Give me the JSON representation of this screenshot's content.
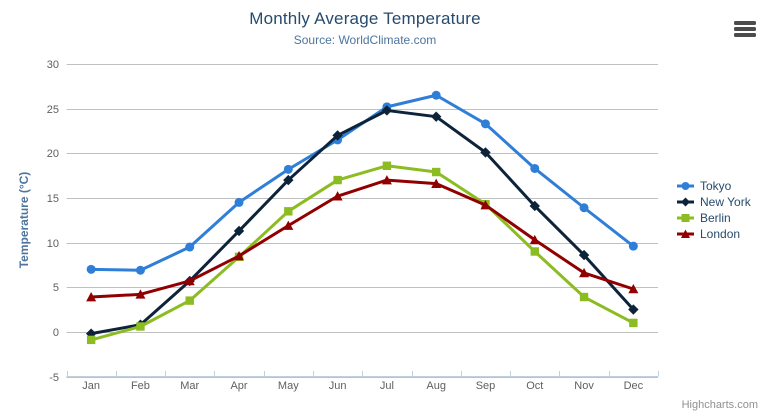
{
  "chart": {
    "title": "Monthly Average Temperature",
    "subtitle": "Source: WorldClimate.com",
    "y_axis_title": "Temperature (°C)",
    "credits": "Highcharts.com",
    "colors": {
      "background": "#ffffff",
      "title": "#274b6d",
      "subtitle": "#4d759e",
      "axis_title": "#4d759e",
      "tick_label": "#606060",
      "gridline": "#c0c0c0",
      "axis_line": "#c0d0e0",
      "legend_text": "#274b6d",
      "credits_text": "#909090",
      "menu_icon": "#4c4c4c"
    }
  },
  "chart_data": {
    "type": "line",
    "title": "Monthly Average Temperature",
    "subtitle": "Source: WorldClimate.com",
    "xlabel": "",
    "ylabel": "Temperature (°C)",
    "categories": [
      "Jan",
      "Feb",
      "Mar",
      "Apr",
      "May",
      "Jun",
      "Jul",
      "Aug",
      "Sep",
      "Oct",
      "Nov",
      "Dec"
    ],
    "series": [
      {
        "name": "Tokyo",
        "color": "#2f7ed8",
        "marker": "circle",
        "values": [
          7.0,
          6.9,
          9.5,
          14.5,
          18.2,
          21.5,
          25.2,
          26.5,
          23.3,
          18.3,
          13.9,
          9.6
        ]
      },
      {
        "name": "New York",
        "color": "#0d233a",
        "marker": "diamond",
        "values": [
          -0.2,
          0.8,
          5.7,
          11.3,
          17.0,
          22.0,
          24.8,
          24.1,
          20.1,
          14.1,
          8.6,
          2.5
        ]
      },
      {
        "name": "Berlin",
        "color": "#8bbc21",
        "marker": "square",
        "values": [
          -0.9,
          0.6,
          3.5,
          8.4,
          13.5,
          17.0,
          18.6,
          17.9,
          14.3,
          9.0,
          3.9,
          1.0
        ]
      },
      {
        "name": "London",
        "color": "#910000",
        "marker": "triangle",
        "values": [
          3.9,
          4.2,
          5.7,
          8.5,
          11.9,
          15.2,
          17.0,
          16.6,
          14.2,
          10.3,
          6.6,
          4.8
        ]
      }
    ],
    "ylim": [
      -5,
      30
    ],
    "y_ticks": [
      -5,
      0,
      5,
      10,
      15,
      20,
      25,
      30
    ],
    "y_tick_interval": 5,
    "grid": true,
    "legend_position": "right"
  }
}
